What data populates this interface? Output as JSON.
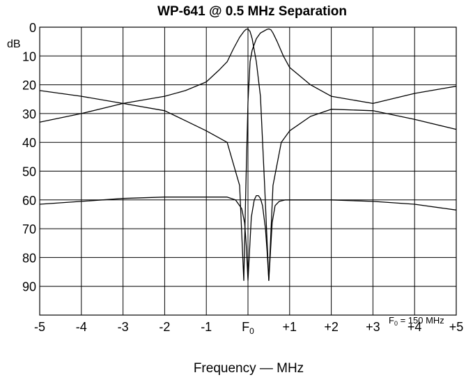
{
  "chart_data": {
    "type": "line",
    "title": "WP-641 @ 0.5 MHz Separation",
    "ylabel": "dB",
    "xlabel": "Frequency — MHz",
    "xlim": [
      -5,
      5
    ],
    "ylim": [
      0,
      100
    ],
    "y_inverted": true,
    "grid": true,
    "x_ticks": [
      "-5",
      "-4",
      "-3",
      "-2",
      "-1",
      "F0",
      "+1",
      "+2",
      "+3",
      "+4",
      "+5"
    ],
    "y_ticks": [
      "0",
      "10",
      "20",
      "30",
      "40",
      "50",
      "60",
      "70",
      "80",
      "90"
    ],
    "annotation": "F0 = 150 MHz",
    "series": [
      {
        "x": [
          -5,
          -4,
          -3,
          -2,
          -1.5,
          -1,
          -0.7,
          -0.5,
          -0.35,
          -0.2,
          -0.1,
          -0.05,
          0,
          0.05,
          0.1,
          0.2,
          0.3,
          0.4,
          0.5,
          0.6,
          0.8,
          1,
          1.5,
          2,
          3,
          4,
          5
        ],
        "values": [
          33,
          30,
          26.5,
          24,
          22,
          19,
          15,
          12,
          7.5,
          3.5,
          1.5,
          0.8,
          0.6,
          1.5,
          4,
          12,
          24,
          55,
          88,
          55,
          40,
          36,
          31,
          28.5,
          29,
          32,
          35.5
        ]
      },
      {
        "x": [
          -5,
          -4,
          -3,
          -2,
          -1.5,
          -1,
          -0.5,
          -0.2,
          -0.1,
          -0.05,
          0,
          0.05,
          0.1,
          0.2,
          0.3,
          0.4,
          0.45,
          0.5,
          0.55,
          0.6,
          0.7,
          0.85,
          1,
          1.5,
          2,
          3,
          4,
          5
        ],
        "values": [
          22,
          24,
          26.5,
          29,
          32.5,
          36,
          40,
          55,
          88,
          55,
          26,
          12,
          8,
          4,
          2,
          1.2,
          0.8,
          0.6,
          0.9,
          2,
          5,
          10,
          14,
          20,
          24,
          26.5,
          23,
          20.5
        ]
      },
      {
        "x": [
          -5,
          -4,
          -3,
          -2,
          -1,
          -0.5,
          -0.3,
          -0.15,
          -0.08,
          -0.04,
          0,
          0.04,
          0.08,
          0.15,
          0.2,
          0.25,
          0.3,
          0.35,
          0.42,
          0.46,
          0.5,
          0.54,
          0.58,
          0.65,
          0.75,
          0.9,
          1.2,
          2,
          3,
          4,
          5
        ],
        "values": [
          61.5,
          60.5,
          59.5,
          59,
          59,
          59,
          60,
          63,
          68,
          76,
          88,
          77,
          66,
          60,
          58.5,
          58.5,
          59.5,
          62,
          70,
          78,
          88,
          78,
          68,
          62,
          60.5,
          60,
          60,
          60,
          60.5,
          61.5,
          63.5
        ]
      }
    ]
  }
}
